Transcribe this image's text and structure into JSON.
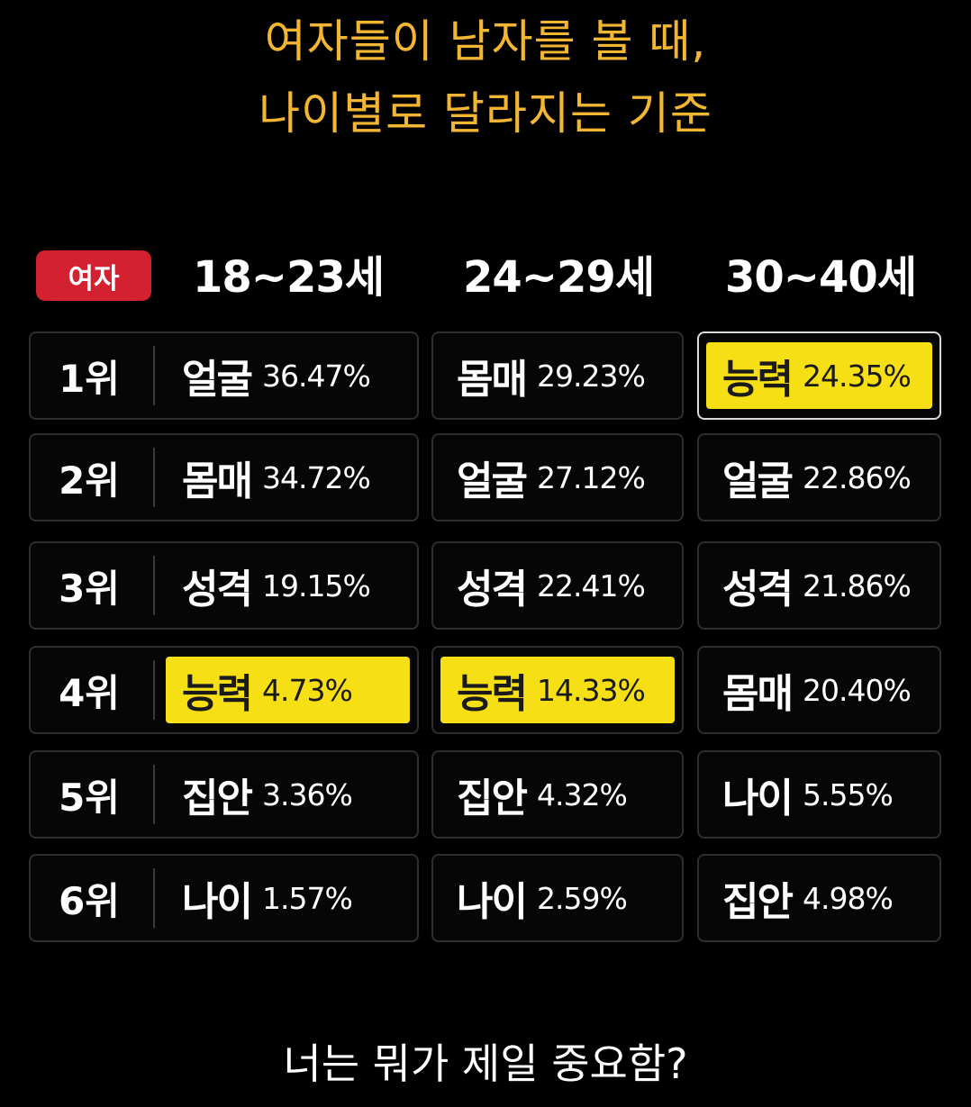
{
  "title": {
    "line1": "여자들이 남자를 볼 때,",
    "line2": "나이별로 달라지는 기준"
  },
  "badge": "여자",
  "columns": [
    "18~23세",
    "24~29세",
    "30~40세"
  ],
  "rows": [
    {
      "rank": "1위",
      "cells": [
        {
          "word": "얼굴",
          "pct": "36.47%"
        },
        {
          "word": "몸매",
          "pct": "29.23%"
        },
        {
          "word": "능력",
          "pct": "24.35%"
        }
      ]
    },
    {
      "rank": "2위",
      "cells": [
        {
          "word": "몸매",
          "pct": "34.72%"
        },
        {
          "word": "얼굴",
          "pct": "27.12%"
        },
        {
          "word": "얼굴",
          "pct": "22.86%"
        }
      ]
    },
    {
      "rank": "3위",
      "cells": [
        {
          "word": "성격",
          "pct": "19.15%"
        },
        {
          "word": "성격",
          "pct": "22.41%"
        },
        {
          "word": "성격",
          "pct": "21.86%"
        }
      ]
    },
    {
      "rank": "4위",
      "cells": [
        {
          "word": "능력",
          "pct": "4.73%"
        },
        {
          "word": "능력",
          "pct": "14.33%"
        },
        {
          "word": "몸매",
          "pct": "20.40%"
        }
      ]
    },
    {
      "rank": "5위",
      "cells": [
        {
          "word": "집안",
          "pct": "3.36%"
        },
        {
          "word": "집안",
          "pct": "4.32%"
        },
        {
          "word": "나이",
          "pct": "5.55%"
        }
      ]
    },
    {
      "rank": "6위",
      "cells": [
        {
          "word": "나이",
          "pct": "1.57%"
        },
        {
          "word": "나이",
          "pct": "2.59%"
        },
        {
          "word": "집안",
          "pct": "4.98%"
        }
      ]
    }
  ],
  "highlighted_word": "능력",
  "question": "너는 뭐가 제일 중요함?",
  "colors": {
    "title": "#f2b632",
    "badge": "#d3212f",
    "highlight": "#f7df15",
    "background": "#000000"
  }
}
